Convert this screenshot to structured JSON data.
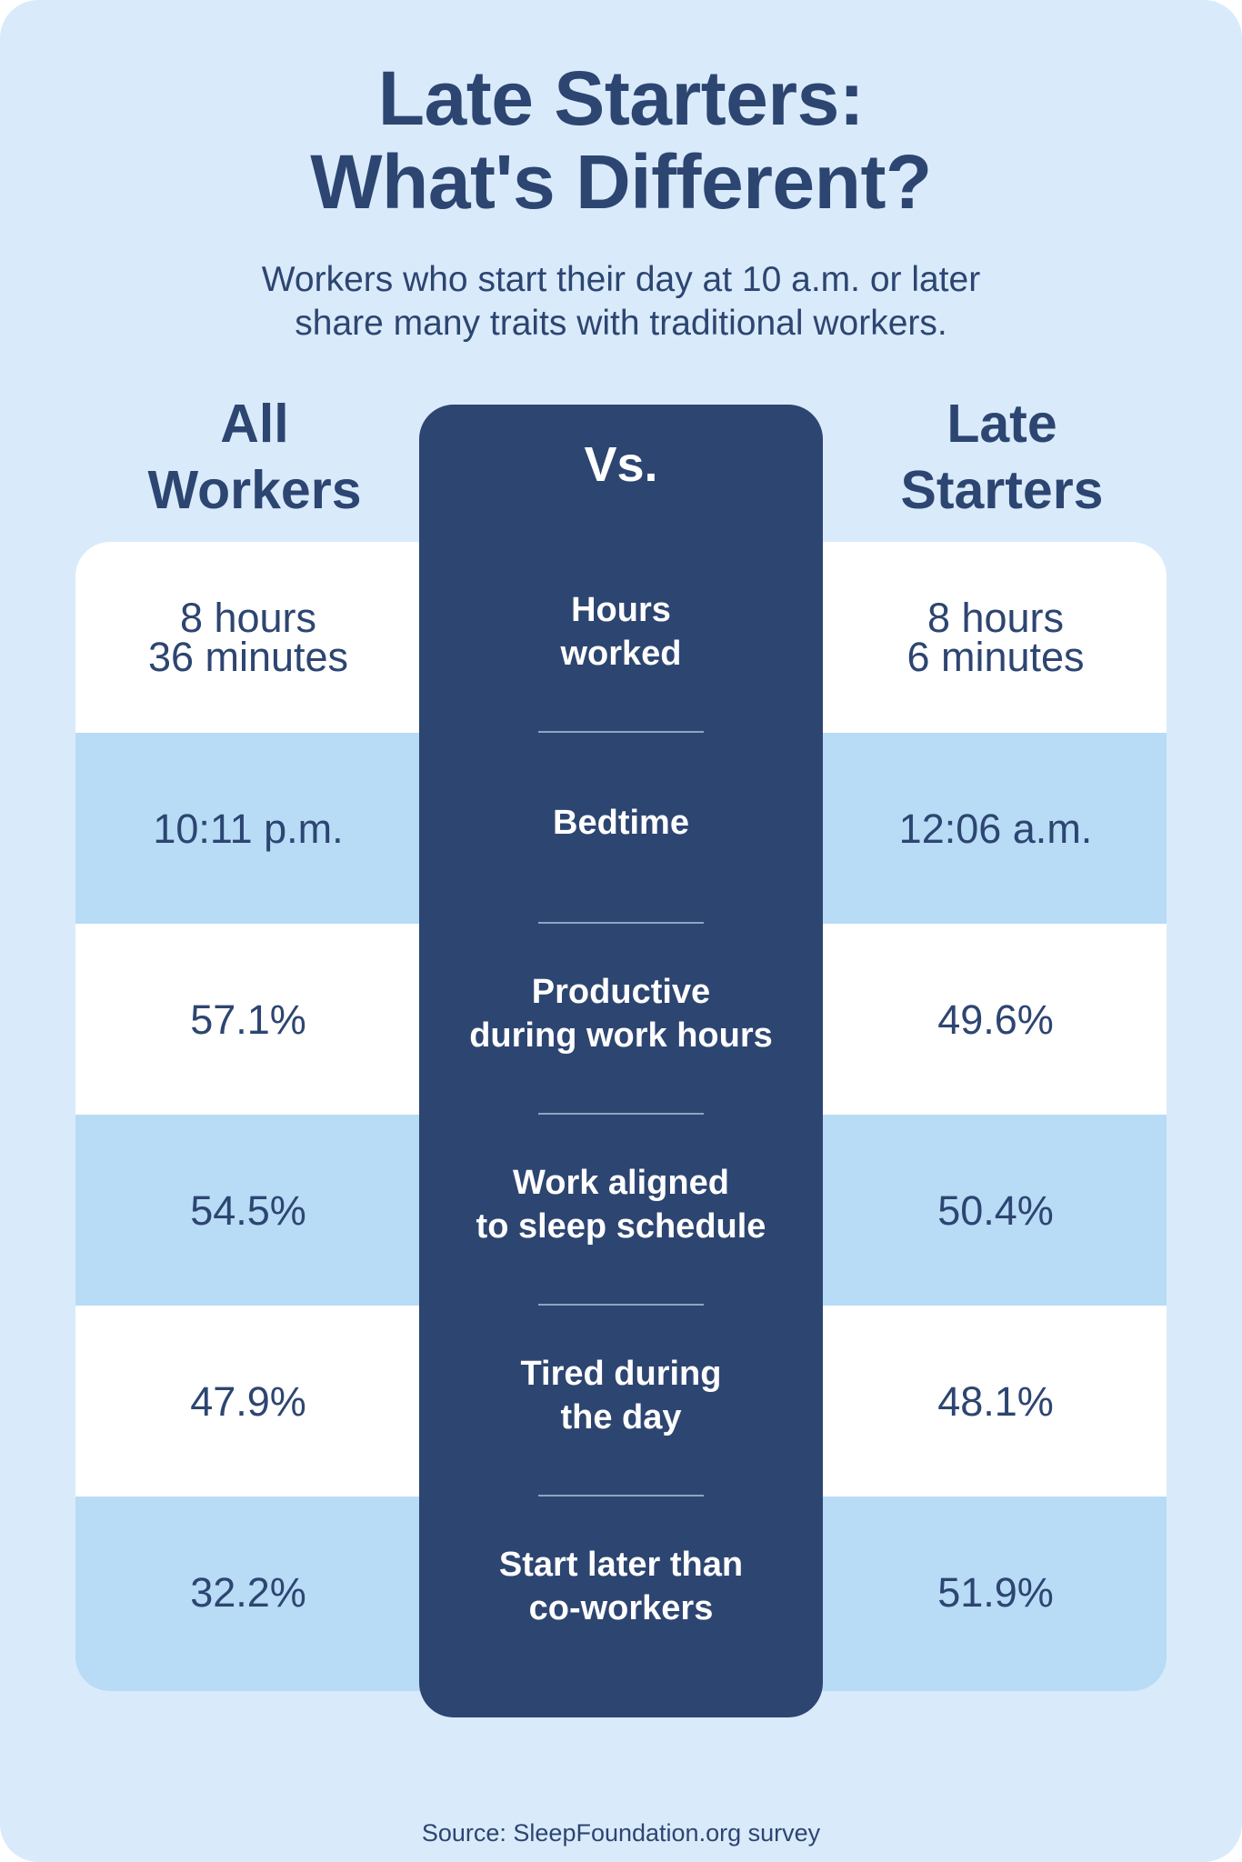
{
  "title_line1": "Late Starters:",
  "title_line2": "What's Different?",
  "subtitle_line1": "Workers who start their day at 10 a.m. or later",
  "subtitle_line2": "share many traits with traditional workers.",
  "left_header_line1": "All",
  "left_header_line2": "Workers",
  "right_header_line1": "Late",
  "right_header_line2": "Starters",
  "center_header": "Vs.",
  "source": "Source: SleepFoundation.org survey",
  "colors": {
    "background": "#d9ebfa",
    "navy": "#2d4571",
    "row_blue": "#b8dbf6",
    "row_white": "#ffffff"
  },
  "chart_data": {
    "type": "table",
    "columns": [
      "All Workers",
      "Late Starters"
    ],
    "rows": [
      {
        "metric": "Hours\nworked",
        "all_workers": "8 hours\n36 minutes",
        "late_starters": "8 hours\n6 minutes"
      },
      {
        "metric": "Bedtime",
        "all_workers": "10:11 p.m.",
        "late_starters": "12:06 a.m."
      },
      {
        "metric": "Productive\nduring work hours",
        "all_workers": "57.1%",
        "late_starters": "49.6%"
      },
      {
        "metric": "Work aligned\nto sleep schedule",
        "all_workers": "54.5%",
        "late_starters": "50.4%"
      },
      {
        "metric": "Tired during\nthe day",
        "all_workers": "47.9%",
        "late_starters": "48.1%"
      },
      {
        "metric": "Start later than\nco-workers",
        "all_workers": "32.2%",
        "late_starters": "51.9%"
      }
    ]
  }
}
